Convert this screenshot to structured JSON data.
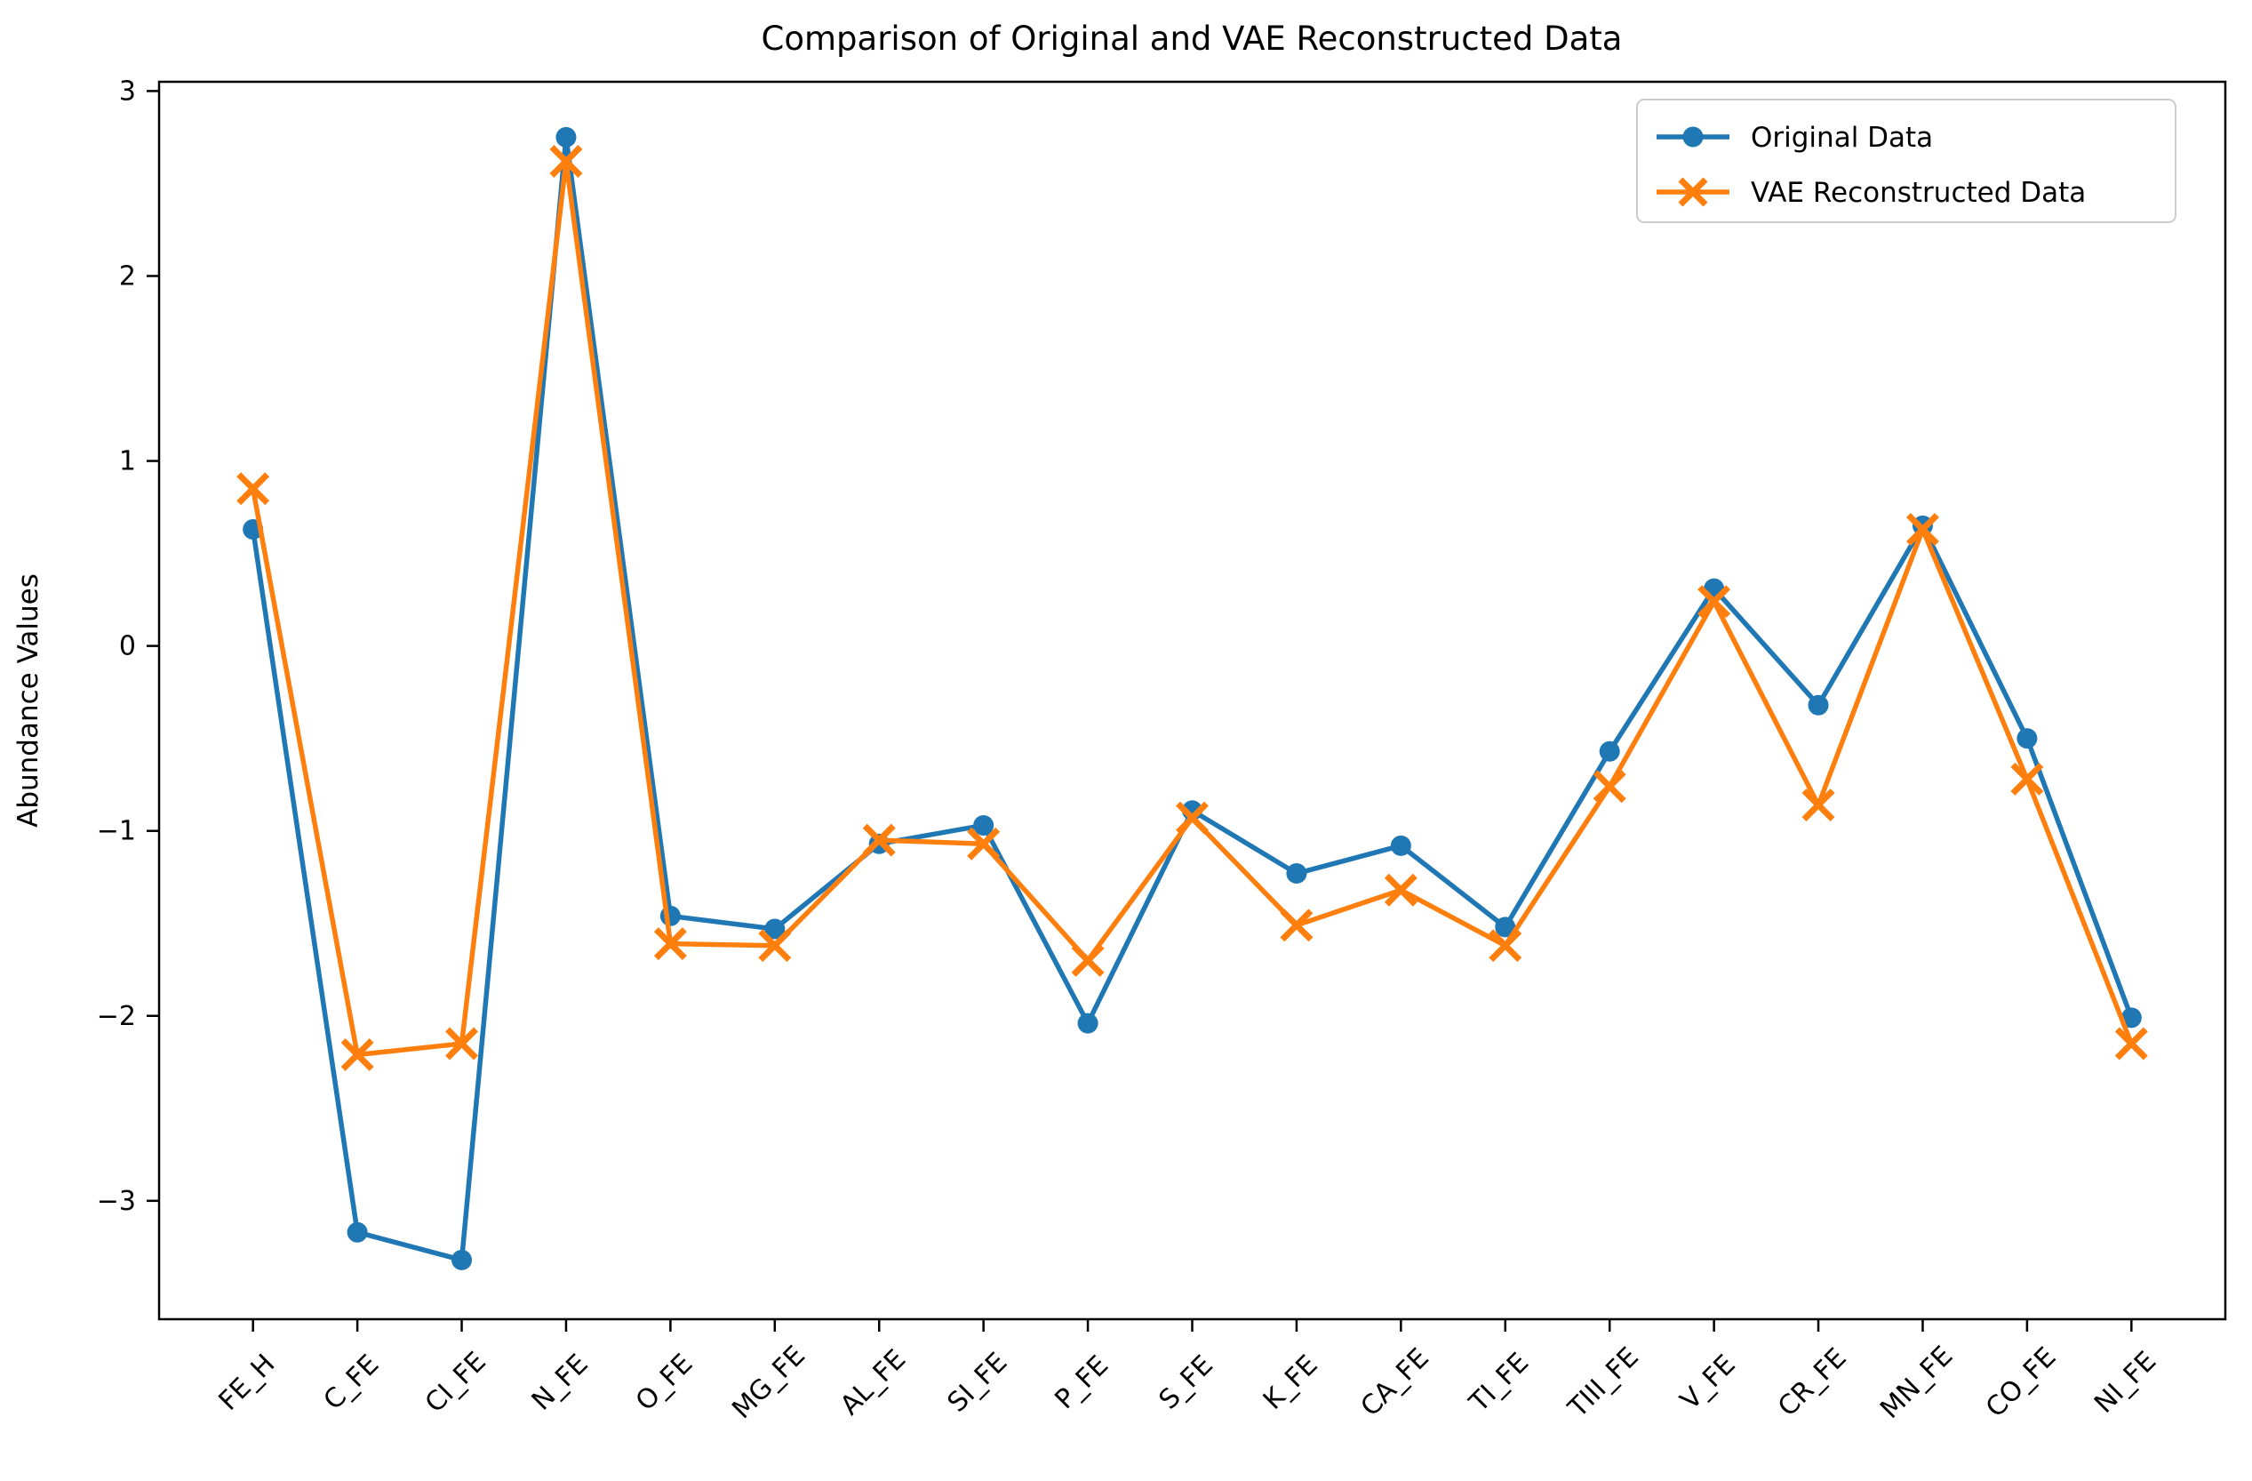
{
  "chart_data": {
    "type": "line",
    "title": "Comparison of Original and VAE Reconstructed Data",
    "xlabel": "",
    "ylabel": "Abundance Values",
    "categories": [
      "FE_H",
      "C_FE",
      "CI_FE",
      "N_FE",
      "O_FE",
      "MG_FE",
      "AL_FE",
      "SI_FE",
      "P_FE",
      "S_FE",
      "K_FE",
      "CA_FE",
      "TI_FE",
      "TIII_FE",
      "V_FE",
      "CR_FE",
      "MN_FE",
      "CO_FE",
      "NI_FE"
    ],
    "series": [
      {
        "name": "Original Data",
        "color": "#1f77b4",
        "marker": "circle",
        "values": [
          0.63,
          -3.17,
          -3.32,
          2.75,
          -1.46,
          -1.53,
          -1.07,
          -0.97,
          -2.04,
          -0.89,
          -1.23,
          -1.08,
          -1.52,
          -0.57,
          0.31,
          -0.32,
          0.65,
          -0.5,
          -2.01
        ]
      },
      {
        "name": "VAE Reconstructed Data",
        "color": "#ff7f0e",
        "marker": "x",
        "values": [
          0.85,
          -2.21,
          -2.15,
          2.62,
          -1.61,
          -1.62,
          -1.05,
          -1.07,
          -1.7,
          -0.93,
          -1.51,
          -1.32,
          -1.62,
          -0.76,
          0.24,
          -0.86,
          0.63,
          -0.72,
          -2.15
        ]
      }
    ],
    "yticks": [
      3,
      2,
      1,
      0,
      -1,
      -2,
      -3
    ],
    "ylim": [
      -3.64,
      3.05
    ],
    "xlim": [
      -0.9,
      18.9
    ],
    "grid": false,
    "legend_position": "upper right",
    "frame_color": "#000000",
    "background_color": "#ffffff"
  }
}
